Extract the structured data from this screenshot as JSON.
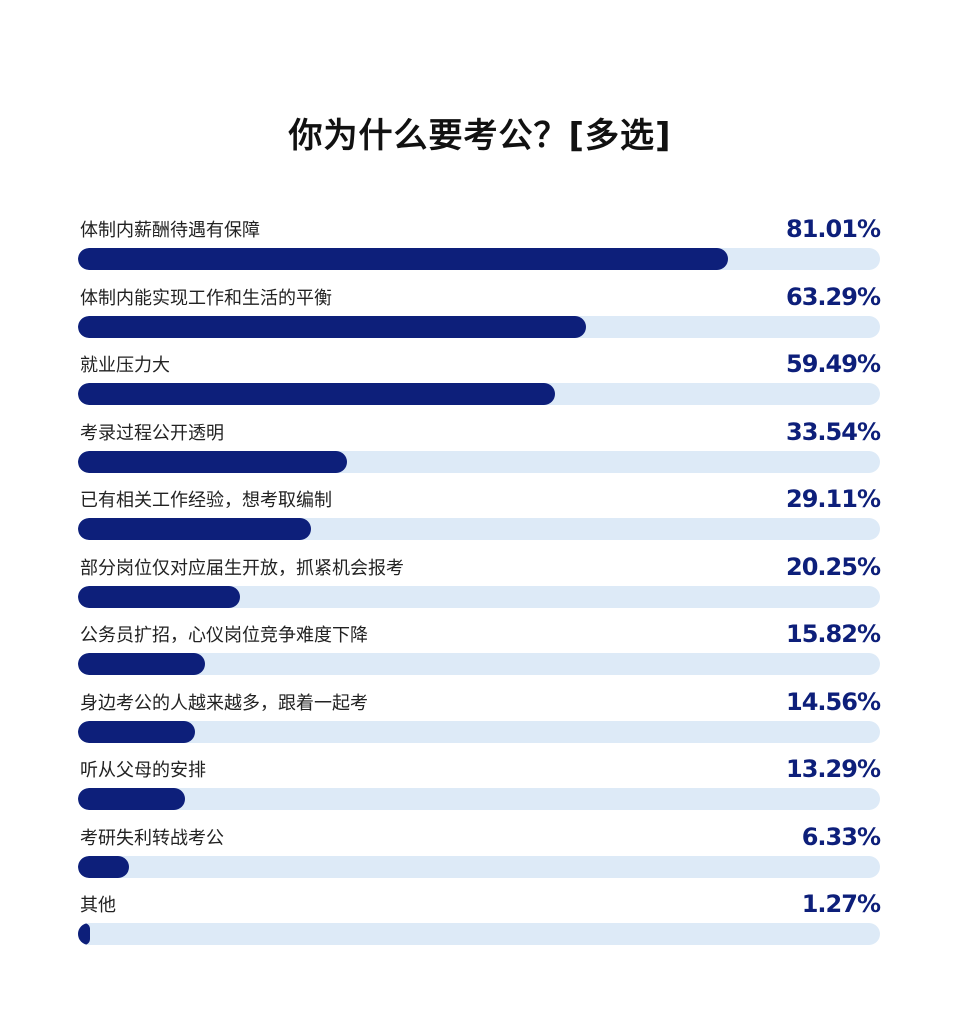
{
  "chart_data": {
    "type": "bar",
    "orientation": "horizontal",
    "title": "你为什么要考公？[多选]",
    "xlim": [
      0,
      100
    ],
    "grid": false,
    "colors": {
      "bar": "#0d1f7a",
      "track": "#ddeaf7",
      "value_text": "#0d1f7a"
    },
    "categories": [
      "体制内薪酬待遇有保障",
      "体制内能实现工作和生活的平衡",
      "就业压力大",
      "考录过程公开透明",
      "已有相关工作经验，想考取编制",
      "部分岗位仅对应届生开放，抓紧机会报考",
      "公务员扩招，心仪岗位竞争难度下降",
      "身边考公的人越来越多，跟着一起考",
      "听从父母的安排",
      "考研失利转战考公",
      "其他"
    ],
    "values": [
      81.01,
      63.29,
      59.49,
      33.54,
      29.11,
      20.25,
      15.82,
      14.56,
      13.29,
      6.33,
      1.27
    ],
    "value_labels": [
      "81.01%",
      "63.29%",
      "59.49%",
      "33.54%",
      "29.11%",
      "20.25%",
      "15.82%",
      "14.56%",
      "13.29%",
      "6.33%",
      "1.27%"
    ]
  }
}
